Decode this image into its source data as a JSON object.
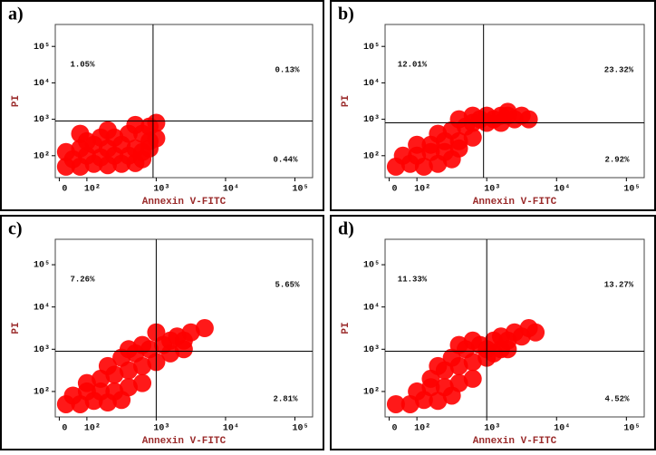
{
  "chart_data": [
    {
      "type": "scatter",
      "title": "a)",
      "xlabel": "Annexin V-FITC",
      "ylabel": "PI",
      "xscale": "log",
      "yscale": "log",
      "color": "#ff0000",
      "xlim": [
        35,
        180000
      ],
      "ylim": [
        25,
        400000
      ],
      "xticks": [
        {
          "value": 40,
          "label": "0"
        },
        {
          "value": 100,
          "label": "10²"
        },
        {
          "value": 1000,
          "label": "10³"
        },
        {
          "value": 10000,
          "label": "10⁴"
        },
        {
          "value": 100000,
          "label": "10⁵"
        }
      ],
      "yticks": [
        {
          "value": 100,
          "label": "10²"
        },
        {
          "value": 1000,
          "label": "10³"
        },
        {
          "value": 10000,
          "label": "10⁴"
        },
        {
          "value": 100000,
          "label": "10⁵"
        }
      ],
      "quadrant_x": 900,
      "quadrant_y": 900,
      "annotations": [
        "1.05%",
        "0.13%",
        "0.44%"
      ],
      "x": [
        50,
        80,
        126,
        200,
        316,
        500,
        630,
        63,
        100,
        158,
        250,
        400,
        630,
        800,
        50,
        80,
        126,
        200,
        316,
        500,
        800,
        100,
        158,
        250,
        400,
        630,
        800,
        200,
        500,
        1000,
        1000,
        80
      ],
      "y": [
        50,
        50,
        60,
        55,
        60,
        63,
        80,
        80,
        100,
        90,
        100,
        100,
        126,
        158,
        126,
        158,
        200,
        158,
        200,
        158,
        250,
        250,
        316,
        316,
        400,
        400,
        630,
        500,
        700,
        800,
        300,
        400
      ]
    },
    {
      "type": "scatter",
      "title": "b)",
      "xlabel": "Annexin V-FITC",
      "ylabel": "PI",
      "xscale": "log",
      "yscale": "log",
      "color": "#ff0000",
      "xlim": [
        35,
        180000
      ],
      "ylim": [
        25,
        400000
      ],
      "xticks": [
        {
          "value": 40,
          "label": "0"
        },
        {
          "value": 100,
          "label": "10²"
        },
        {
          "value": 1000,
          "label": "10³"
        },
        {
          "value": 10000,
          "label": "10⁴"
        },
        {
          "value": 100000,
          "label": "10⁵"
        }
      ],
      "yticks": [
        {
          "value": 100,
          "label": "10²"
        },
        {
          "value": 1000,
          "label": "10³"
        },
        {
          "value": 10000,
          "label": "10⁴"
        },
        {
          "value": 100000,
          "label": "10⁵"
        }
      ],
      "quadrant_x": 900,
      "quadrant_y": 800,
      "annotations": [
        "12.01%",
        "23.32%",
        "2.92%"
      ],
      "x": [
        50,
        80,
        126,
        200,
        316,
        63,
        100,
        158,
        250,
        400,
        100,
        158,
        250,
        400,
        630,
        200,
        316,
        500,
        630,
        800,
        1000,
        1260,
        1600,
        2000,
        2500,
        3160,
        1000,
        630,
        400,
        1600,
        2000,
        4000
      ],
      "y": [
        50,
        60,
        50,
        60,
        80,
        100,
        100,
        126,
        126,
        158,
        200,
        200,
        250,
        250,
        316,
        400,
        500,
        630,
        800,
        1000,
        1260,
        1000,
        1260,
        1260,
        1000,
        1260,
        800,
        1260,
        1000,
        800,
        1600,
        1000
      ]
    },
    {
      "type": "scatter",
      "title": "c)",
      "xlabel": "Annexin V-FITC",
      "ylabel": "PI",
      "xscale": "log",
      "yscale": "log",
      "color": "#ff0000",
      "xlim": [
        35,
        180000
      ],
      "ylim": [
        25,
        400000
      ],
      "xticks": [
        {
          "value": 40,
          "label": "0"
        },
        {
          "value": 100,
          "label": "10²"
        },
        {
          "value": 1000,
          "label": "10³"
        },
        {
          "value": 10000,
          "label": "10⁴"
        },
        {
          "value": 100000,
          "label": "10⁵"
        }
      ],
      "yticks": [
        {
          "value": 100,
          "label": "10²"
        },
        {
          "value": 1000,
          "label": "10³"
        },
        {
          "value": 10000,
          "label": "10⁴"
        },
        {
          "value": 100000,
          "label": "10⁵"
        }
      ],
      "quadrant_x": 1000,
      "quadrant_y": 900,
      "annotations": [
        "7.26%",
        "5.65%",
        "2.81%"
      ],
      "x": [
        50,
        80,
        126,
        200,
        316,
        63,
        100,
        158,
        250,
        400,
        630,
        100,
        158,
        250,
        400,
        630,
        1000,
        200,
        316,
        500,
        800,
        1260,
        1600,
        2000,
        2500,
        1600,
        1000,
        3160,
        630,
        400,
        2500,
        5000
      ],
      "y": [
        50,
        50,
        60,
        55,
        63,
        80,
        100,
        100,
        100,
        126,
        158,
        158,
        200,
        250,
        316,
        400,
        500,
        400,
        630,
        800,
        1000,
        1260,
        1600,
        2000,
        1600,
        800,
        2500,
        2500,
        1260,
        1000,
        1000,
        3160
      ]
    },
    {
      "type": "scatter",
      "title": "d)",
      "xlabel": "Annexin V-FITC",
      "ylabel": "PI",
      "xscale": "log",
      "yscale": "log",
      "color": "#ff0000",
      "xlim": [
        35,
        180000
      ],
      "ylim": [
        25,
        400000
      ],
      "xticks": [
        {
          "value": 40,
          "label": "0"
        },
        {
          "value": 100,
          "label": "10²"
        },
        {
          "value": 1000,
          "label": "10³"
        },
        {
          "value": 10000,
          "label": "10⁴"
        },
        {
          "value": 100000,
          "label": "10⁵"
        }
      ],
      "yticks": [
        {
          "value": 100,
          "label": "10²"
        },
        {
          "value": 1000,
          "label": "10³"
        },
        {
          "value": 10000,
          "label": "10⁴"
        },
        {
          "value": 100000,
          "label": "10⁵"
        }
      ],
      "quadrant_x": 1000,
      "quadrant_y": 900,
      "annotations": [
        "11.33%",
        "13.27%",
        "4.52%"
      ],
      "x": [
        50,
        80,
        126,
        200,
        316,
        100,
        158,
        250,
        400,
        630,
        158,
        250,
        400,
        630,
        1000,
        316,
        500,
        800,
        1260,
        1600,
        2000,
        2500,
        3160,
        1000,
        630,
        400,
        1600,
        4000,
        1260,
        2000,
        200,
        5000
      ],
      "y": [
        50,
        50,
        63,
        60,
        80,
        100,
        126,
        126,
        158,
        200,
        200,
        316,
        400,
        500,
        630,
        630,
        1000,
        1260,
        1600,
        2000,
        1600,
        2500,
        2000,
        1000,
        1600,
        1260,
        1000,
        3160,
        800,
        1000,
        400,
        2500
      ]
    }
  ]
}
